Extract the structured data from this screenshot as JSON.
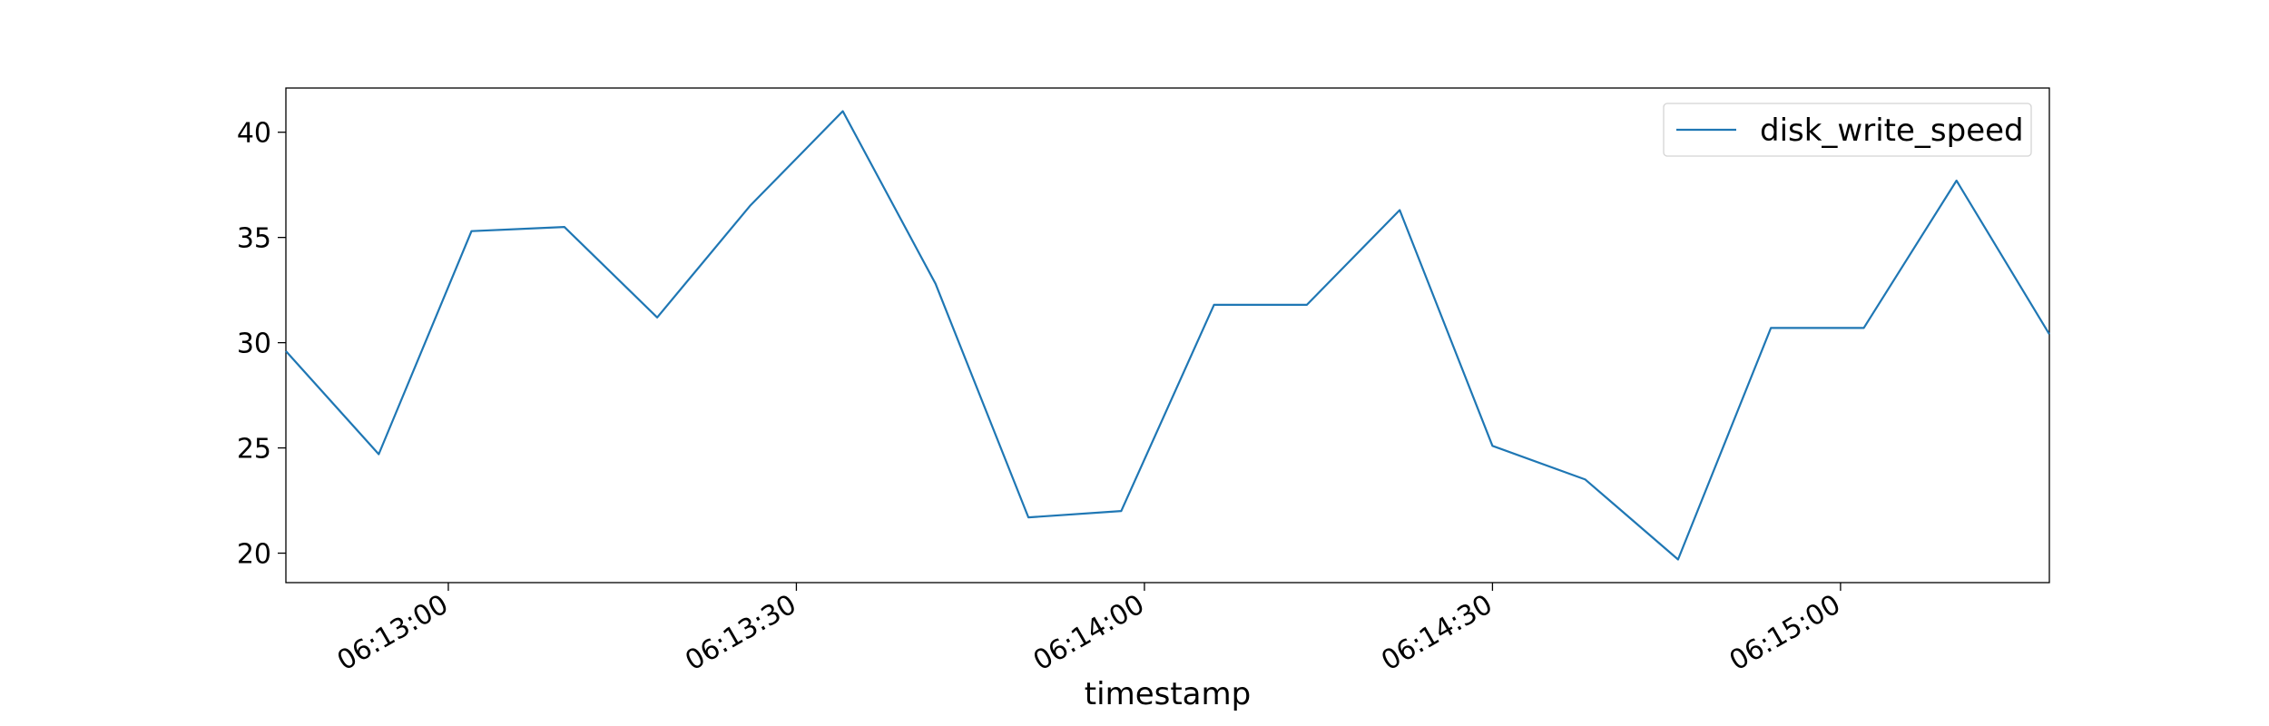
{
  "chart_data": {
    "type": "line",
    "title": "",
    "xlabel": "timestamp",
    "ylabel": "",
    "x_format": "time",
    "x": [
      "06:12:46",
      "06:12:54",
      "06:13:02",
      "06:13:10",
      "06:13:18",
      "06:13:26",
      "06:13:34",
      "06:13:42",
      "06:13:50",
      "06:13:58",
      "06:14:06",
      "06:14:14",
      "06:14:22",
      "06:14:30",
      "06:14:38",
      "06:14:46",
      "06:14:54",
      "06:15:02",
      "06:15:10",
      "06:15:18"
    ],
    "xlim": [
      "06:12:46",
      "06:15:18"
    ],
    "xticks": [
      "06:13:00",
      "06:13:30",
      "06:14:00",
      "06:14:30",
      "06:15:00"
    ],
    "ylim": [
      18.6,
      42.1
    ],
    "yticks": [
      20,
      25,
      30,
      35,
      40
    ],
    "series": [
      {
        "name": "disk_write_speed",
        "color": "#1f77b4",
        "values": [
          29.6,
          24.7,
          35.3,
          35.5,
          31.2,
          36.5,
          41.0,
          32.8,
          21.7,
          22.0,
          31.8,
          31.8,
          36.3,
          25.1,
          23.5,
          19.7,
          30.7,
          30.7,
          37.7,
          30.4
        ]
      }
    ],
    "grid": false,
    "legend_position": "top-right"
  }
}
